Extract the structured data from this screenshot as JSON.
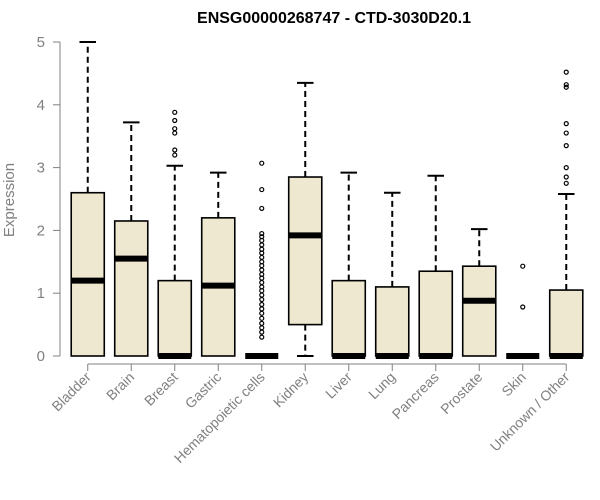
{
  "chart_data": {
    "type": "boxplot",
    "title": "ENSG00000268747 - CTD-3030D20.1",
    "ylabel": "Expression",
    "ylim": [
      0,
      5
    ],
    "yticks": [
      0,
      1,
      2,
      3,
      4,
      5
    ],
    "grid": false,
    "box_color": "#efe8d0",
    "categories": [
      "Bladder",
      "Brain",
      "Breast",
      "Gastric",
      "Hematopoietic cells",
      "Kidney",
      "Liver",
      "Lung",
      "Pancreas",
      "Prostate",
      "Skin",
      "Unknown / Other"
    ],
    "boxes": [
      {
        "category": "Bladder",
        "whisker_low": 0,
        "q1": 0,
        "median": 1.2,
        "q3": 2.6,
        "whisker_high": 5.0,
        "outliers": []
      },
      {
        "category": "Brain",
        "whisker_low": 0,
        "q1": 0,
        "median": 1.55,
        "q3": 2.15,
        "whisker_high": 3.72,
        "outliers": []
      },
      {
        "category": "Breast",
        "whisker_low": 0,
        "q1": 0,
        "median": 0,
        "q3": 1.2,
        "whisker_high": 3.03,
        "outliers": [
          3.2,
          3.28,
          3.55,
          3.62,
          3.75,
          3.88
        ]
      },
      {
        "category": "Gastric",
        "whisker_low": 0,
        "q1": 0,
        "median": 1.12,
        "q3": 2.2,
        "whisker_high": 2.92,
        "outliers": []
      },
      {
        "category": "Hematopoietic cells",
        "whisker_low": 0,
        "q1": 0,
        "median": 0,
        "q3": 0,
        "whisker_high": 0,
        "outliers": [
          0.3,
          0.38,
          0.45,
          0.52,
          0.6,
          0.68,
          0.75,
          0.82,
          0.9,
          0.97,
          1.04,
          1.1,
          1.17,
          1.24,
          1.3,
          1.37,
          1.44,
          1.5,
          1.57,
          1.64,
          1.7,
          1.77,
          1.84,
          1.9,
          1.95,
          2.35,
          2.65,
          3.07
        ]
      },
      {
        "category": "Kidney",
        "whisker_low": 0,
        "q1": 0.5,
        "median": 1.92,
        "q3": 2.85,
        "whisker_high": 4.35,
        "outliers": []
      },
      {
        "category": "Liver",
        "whisker_low": 0,
        "q1": 0,
        "median": 0,
        "q3": 1.2,
        "whisker_high": 2.92,
        "outliers": []
      },
      {
        "category": "Lung",
        "whisker_low": 0,
        "q1": 0,
        "median": 0,
        "q3": 1.1,
        "whisker_high": 2.6,
        "outliers": []
      },
      {
        "category": "Pancreas",
        "whisker_low": 0,
        "q1": 0,
        "median": 0,
        "q3": 1.35,
        "whisker_high": 2.87,
        "outliers": []
      },
      {
        "category": "Prostate",
        "whisker_low": 0,
        "q1": 0,
        "median": 0.88,
        "q3": 1.43,
        "whisker_high": 2.02,
        "outliers": []
      },
      {
        "category": "Skin",
        "whisker_low": 0,
        "q1": 0,
        "median": 0,
        "q3": 0,
        "whisker_high": 0,
        "outliers": [
          0.78,
          1.43
        ]
      },
      {
        "category": "Unknown / Other",
        "whisker_low": 0,
        "q1": 0,
        "median": 0,
        "q3": 1.05,
        "whisker_high": 2.58,
        "outliers": [
          2.75,
          2.85,
          3.0,
          3.35,
          3.55,
          3.7,
          4.28,
          4.32,
          4.52
        ]
      }
    ]
  }
}
